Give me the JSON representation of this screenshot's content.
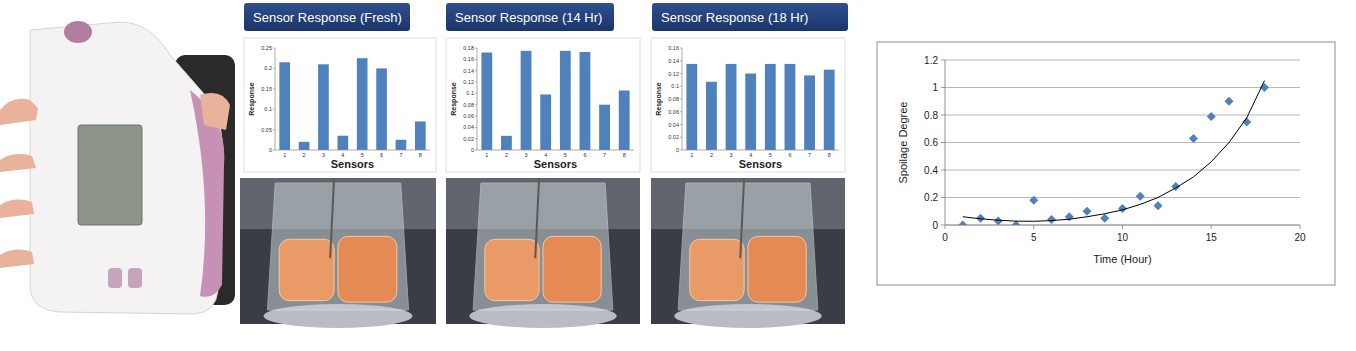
{
  "chart_data": [
    {
      "type": "bar",
      "title": "Sensor Response (Fresh)",
      "x_label": "Sensors",
      "y_label": "Response",
      "categories": [
        "1",
        "2",
        "3",
        "4",
        "5",
        "6",
        "7",
        "8"
      ],
      "values": [
        0.215,
        0.02,
        0.21,
        0.035,
        0.225,
        0.2,
        0.025,
        0.07
      ],
      "color": "#4f81bd",
      "ylim": [
        0,
        0.25
      ],
      "yticks": [
        0,
        0.05,
        0.1,
        0.15,
        0.2,
        0.25
      ],
      "grid": false
    },
    {
      "type": "bar",
      "title": "Sensor Response (14 Hr)",
      "x_label": "Sensors",
      "y_label": "Response",
      "categories": [
        "1",
        "2",
        "3",
        "4",
        "5",
        "6",
        "7",
        "8"
      ],
      "values": [
        0.172,
        0.025,
        0.175,
        0.098,
        0.175,
        0.173,
        0.08,
        0.105
      ],
      "color": "#4f81bd",
      "ylim": [
        0,
        0.18
      ],
      "yticks": [
        0,
        0.02,
        0.04,
        0.06,
        0.08,
        0.1,
        0.12,
        0.14,
        0.16,
        0.18
      ],
      "grid": false
    },
    {
      "type": "bar",
      "title": "Sensor Response (18 Hr)",
      "x_label": "Sensors",
      "y_label": "Response",
      "categories": [
        "1",
        "2",
        "3",
        "4",
        "5",
        "6",
        "7",
        "8"
      ],
      "values": [
        0.135,
        0.107,
        0.135,
        0.12,
        0.135,
        0.135,
        0.117,
        0.126
      ],
      "color": "#4f81bd",
      "ylim": [
        0,
        0.16
      ],
      "yticks": [
        0,
        0.02,
        0.04,
        0.06,
        0.08,
        0.1,
        0.12,
        0.14,
        0.16
      ],
      "grid": false
    },
    {
      "type": "scatter",
      "x_label": "Time (Hour)",
      "y_label": "Spoilage Degree",
      "x": [
        1,
        2,
        3,
        4,
        5,
        6,
        7,
        8,
        9,
        10,
        11,
        12,
        13,
        14,
        15,
        16,
        17,
        18
      ],
      "series": [
        {
          "type": "scatter",
          "marker": "diamond",
          "color": "#4f81bd",
          "values": [
            0,
            0.05,
            0.03,
            0,
            0.18,
            0.04,
            0.06,
            0.1,
            0.05,
            0.12,
            0.21,
            0.14,
            0.28,
            0.63,
            0.79,
            0.9,
            0.75,
            1.0
          ]
        },
        {
          "type": "line",
          "line_style": "solid",
          "color": "#000000",
          "values": [
            0.06,
            0.045,
            0.035,
            0.028,
            0.027,
            0.032,
            0.042,
            0.06,
            0.082,
            0.11,
            0.15,
            0.2,
            0.27,
            0.35,
            0.46,
            0.6,
            0.78,
            1.05
          ]
        }
      ],
      "xlim": [
        0,
        20
      ],
      "xticks": [
        0,
        5,
        10,
        15,
        20
      ],
      "ylim": [
        0,
        1.2
      ],
      "yticks": [
        0,
        0.2,
        0.4,
        0.6,
        0.8,
        1,
        1.2
      ],
      "grid": true
    }
  ]
}
